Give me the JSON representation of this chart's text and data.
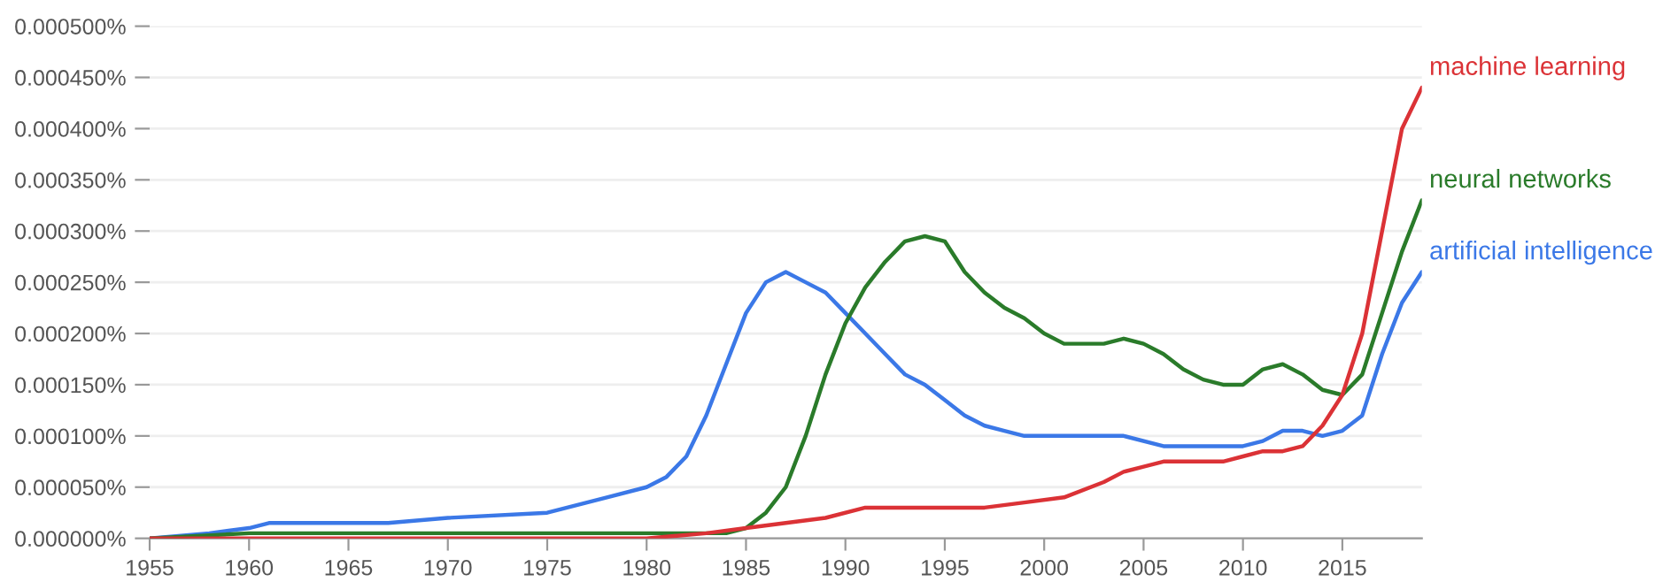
{
  "chart_data": {
    "type": "line",
    "xlim": [
      1955,
      2019
    ],
    "xticks": [
      1955,
      1960,
      1965,
      1970,
      1975,
      1980,
      1985,
      1990,
      1995,
      2000,
      2005,
      2010,
      2015
    ],
    "ylim": [
      0,
      0.0005
    ],
    "yticks": [
      {
        "value": 0,
        "label": "0.000000%"
      },
      {
        "value": 5e-05,
        "label": "0.000050%"
      },
      {
        "value": 0.0001,
        "label": "0.000100%"
      },
      {
        "value": 0.00015,
        "label": "0.000150%"
      },
      {
        "value": 0.0002,
        "label": "0.000200%"
      },
      {
        "value": 0.00025,
        "label": "0.000250%"
      },
      {
        "value": 0.0003,
        "label": "0.000300%"
      },
      {
        "value": 0.00035,
        "label": "0.000350%"
      },
      {
        "value": 0.0004,
        "label": "0.000400%"
      },
      {
        "value": 0.00045,
        "label": "0.000450%"
      },
      {
        "value": 0.0005,
        "label": "0.000500%"
      }
    ],
    "grid": "y",
    "legend": false,
    "marker": "none",
    "line_style": "solid",
    "series": [
      {
        "name": "machine learning",
        "color": "#db3236",
        "x": [
          1955,
          1970,
          1980,
          1983,
          1985,
          1987,
          1989,
          1991,
          1993,
          1995,
          1997,
          1999,
          2001,
          2003,
          2004,
          2005,
          2006,
          2008,
          2009,
          2010,
          2011,
          2012,
          2013,
          2014,
          2015,
          2016,
          2017,
          2018,
          2019
        ],
        "values": [
          0,
          0,
          0,
          5e-06,
          1e-05,
          1.5e-05,
          2e-05,
          3e-05,
          3e-05,
          3e-05,
          3e-05,
          3.5e-05,
          4e-05,
          5.5e-05,
          6.5e-05,
          7e-05,
          7.5e-05,
          7.5e-05,
          7.5e-05,
          8e-05,
          8.5e-05,
          8.5e-05,
          9e-05,
          0.00011,
          0.00014,
          0.0002,
          0.0003,
          0.0004,
          0.00044
        ]
      },
      {
        "name": "neural networks",
        "color": "#2a7b2a",
        "x": [
          1955,
          1960,
          1970,
          1980,
          1983,
          1984,
          1985,
          1986,
          1987,
          1988,
          1989,
          1990,
          1991,
          1992,
          1993,
          1994,
          1995,
          1996,
          1997,
          1998,
          1999,
          2000,
          2001,
          2002,
          2003,
          2004,
          2005,
          2006,
          2007,
          2008,
          2009,
          2010,
          2011,
          2012,
          2013,
          2014,
          2015,
          2016,
          2017,
          2018,
          2019
        ],
        "values": [
          0,
          5e-06,
          5e-06,
          5e-06,
          5e-06,
          5e-06,
          1e-05,
          2.5e-05,
          5e-05,
          0.0001,
          0.00016,
          0.00021,
          0.000245,
          0.00027,
          0.00029,
          0.000295,
          0.00029,
          0.00026,
          0.00024,
          0.000225,
          0.000215,
          0.0002,
          0.00019,
          0.00019,
          0.00019,
          0.000195,
          0.00019,
          0.00018,
          0.000165,
          0.000155,
          0.00015,
          0.00015,
          0.000165,
          0.00017,
          0.00016,
          0.000145,
          0.00014,
          0.00016,
          0.00022,
          0.00028,
          0.00033
        ]
      },
      {
        "name": "artificial intelligence",
        "color": "#3b78e7",
        "x": [
          1955,
          1958,
          1960,
          1961,
          1963,
          1965,
          1967,
          1970,
          1975,
          1977,
          1978,
          1980,
          1981,
          1982,
          1983,
          1984,
          1985,
          1986,
          1987,
          1988,
          1989,
          1990,
          1991,
          1992,
          1993,
          1994,
          1995,
          1996,
          1997,
          1998,
          1999,
          2000,
          2002,
          2004,
          2006,
          2008,
          2010,
          2011,
          2012,
          2013,
          2014,
          2015,
          2016,
          2017,
          2018,
          2019
        ],
        "values": [
          0,
          5e-06,
          1e-05,
          1.5e-05,
          1.5e-05,
          1.5e-05,
          1.5e-05,
          2e-05,
          2.5e-05,
          3.5e-05,
          4e-05,
          5e-05,
          6e-05,
          8e-05,
          0.00012,
          0.00017,
          0.00022,
          0.00025,
          0.00026,
          0.00025,
          0.00024,
          0.00022,
          0.0002,
          0.00018,
          0.00016,
          0.00015,
          0.000135,
          0.00012,
          0.00011,
          0.000105,
          0.0001,
          0.0001,
          0.0001,
          0.0001,
          9e-05,
          9e-05,
          9e-05,
          9.5e-05,
          0.000105,
          0.000105,
          0.0001,
          0.000105,
          0.00012,
          0.00018,
          0.00023,
          0.00026
        ]
      }
    ]
  }
}
